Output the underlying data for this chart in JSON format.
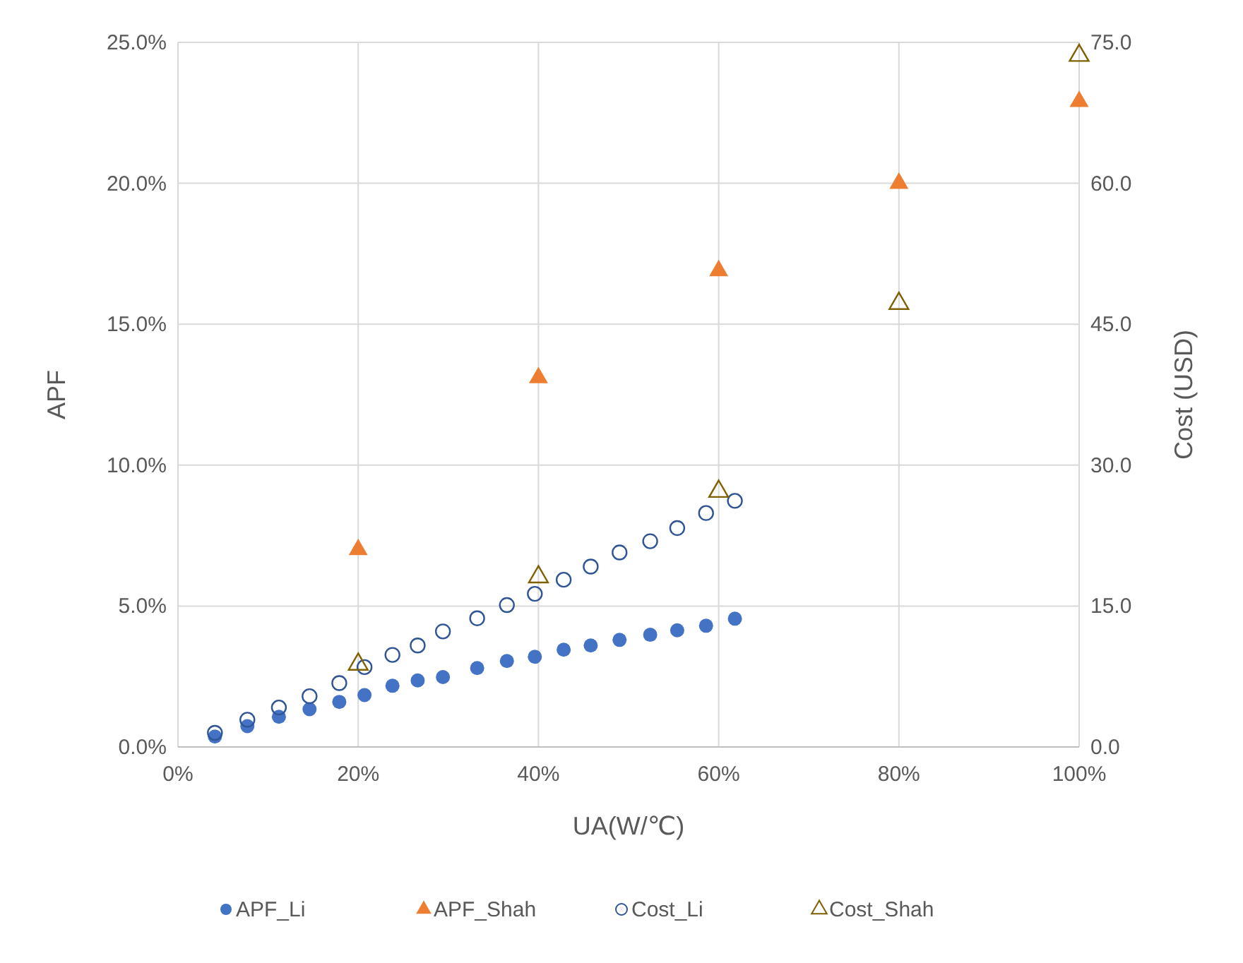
{
  "chart_data": {
    "type": "scatter",
    "xlabel": "UA(W/℃)",
    "ylabel": "APF",
    "y2label": "Cost  (USD)",
    "xlim": [
      0,
      100
    ],
    "xticks": [
      {
        "value": 0,
        "label": "0%"
      },
      {
        "value": 20,
        "label": "20%"
      },
      {
        "value": 40,
        "label": "40%"
      },
      {
        "value": 60,
        "label": "60%"
      },
      {
        "value": 80,
        "label": "80%"
      },
      {
        "value": 100,
        "label": "100%"
      }
    ],
    "ylim": [
      0,
      25
    ],
    "yticks": [
      {
        "value": 0,
        "label": "0.0%"
      },
      {
        "value": 5,
        "label": "5.0%"
      },
      {
        "value": 10,
        "label": "10.0%"
      },
      {
        "value": 15,
        "label": "15.0%"
      },
      {
        "value": 20,
        "label": "20.0%"
      },
      {
        "value": 25,
        "label": "25.0%"
      }
    ],
    "y2lim": [
      0,
      75
    ],
    "y2ticks": [
      {
        "value": 0,
        "label": "0.0"
      },
      {
        "value": 15,
        "label": "15.0"
      },
      {
        "value": 30,
        "label": "30.0"
      },
      {
        "value": 45,
        "label": "45.0"
      },
      {
        "value": 60,
        "label": "60.0"
      },
      {
        "value": 75,
        "label": "75.0"
      }
    ],
    "grid": true,
    "legend": "bottom",
    "series": [
      {
        "name": "APF_Li",
        "color": "#4472c4",
        "marker": "circle",
        "x": [
          4.1,
          7.7,
          11.2,
          14.6,
          17.9,
          20.7,
          23.8,
          26.6,
          29.4,
          33.2,
          36.5,
          39.6,
          42.8,
          45.8,
          49.0,
          52.4,
          55.4,
          58.6,
          61.8
        ],
        "values": [
          0.37,
          0.74,
          1.07,
          1.34,
          1.6,
          1.84,
          2.17,
          2.36,
          2.48,
          2.8,
          3.05,
          3.2,
          3.45,
          3.6,
          3.8,
          3.98,
          4.14,
          4.3,
          4.55
        ]
      },
      {
        "name": "APF_Shah",
        "color": "#ed7d31",
        "marker": "triangle",
        "x": [
          20,
          40,
          60,
          80,
          100
        ],
        "values": [
          7.0,
          13.1,
          16.9,
          20.0,
          22.9
        ]
      },
      {
        "name": "Cost_Li",
        "color": "#2f5597",
        "marker": "circle",
        "axis": "y2",
        "x": [
          4.1,
          7.7,
          11.2,
          14.6,
          17.9,
          20.7,
          23.8,
          26.6,
          29.4,
          33.2,
          36.5,
          39.6,
          42.8,
          45.8,
          49.0,
          52.4,
          55.4,
          58.6,
          61.8
        ],
        "values": [
          1.5,
          2.9,
          4.2,
          5.4,
          6.8,
          8.5,
          9.8,
          10.8,
          12.3,
          13.7,
          15.1,
          16.3,
          17.8,
          19.2,
          20.7,
          21.9,
          23.3,
          24.9,
          26.2
        ]
      },
      {
        "name": "Cost_Shah",
        "color": "#7f6000",
        "marker": "triangle",
        "axis": "y2",
        "x": [
          20,
          40,
          60,
          80,
          100
        ],
        "values": [
          8.8,
          18.1,
          27.2,
          47.2,
          73.6
        ]
      }
    ]
  }
}
